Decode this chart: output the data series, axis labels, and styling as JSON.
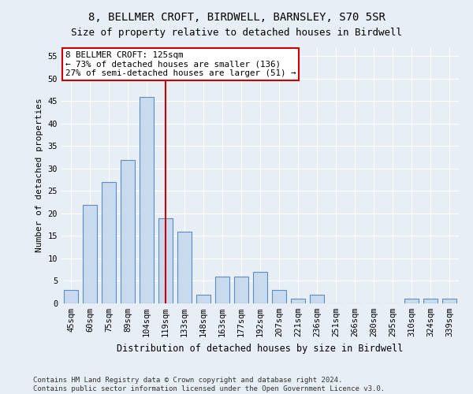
{
  "title": "8, BELLMER CROFT, BIRDWELL, BARNSLEY, S70 5SR",
  "subtitle": "Size of property relative to detached houses in Birdwell",
  "xlabel": "Distribution of detached houses by size in Birdwell",
  "ylabel": "Number of detached properties",
  "categories": [
    "45sqm",
    "60sqm",
    "75sqm",
    "89sqm",
    "104sqm",
    "119sqm",
    "133sqm",
    "148sqm",
    "163sqm",
    "177sqm",
    "192sqm",
    "207sqm",
    "221sqm",
    "236sqm",
    "251sqm",
    "266sqm",
    "280sqm",
    "295sqm",
    "310sqm",
    "324sqm",
    "339sqm"
  ],
  "values": [
    3,
    22,
    27,
    32,
    46,
    19,
    16,
    2,
    6,
    6,
    7,
    3,
    1,
    2,
    0,
    0,
    0,
    0,
    1,
    1,
    1
  ],
  "bar_color": "#c9d9ee",
  "bar_edge_color": "#5b8ec4",
  "annotation_title": "8 BELLMER CROFT: 125sqm",
  "annotation_line1": "← 73% of detached houses are smaller (136)",
  "annotation_line2": "27% of semi-detached houses are larger (51) →",
  "annotation_box_color": "#ffffff",
  "annotation_box_edge": "#cc0000",
  "vline_color": "#cc0000",
  "vline_x": 5.0,
  "ylim": [
    0,
    57
  ],
  "yticks": [
    0,
    5,
    10,
    15,
    20,
    25,
    30,
    35,
    40,
    45,
    50,
    55
  ],
  "footer_line1": "Contains HM Land Registry data © Crown copyright and database right 2024.",
  "footer_line2": "Contains public sector information licensed under the Open Government Licence v3.0.",
  "bg_color": "#e8eef5",
  "plot_bg_color": "#e8eef5",
  "grid_color": "#ffffff",
  "title_fontsize": 10,
  "subtitle_fontsize": 9,
  "tick_fontsize": 7.5,
  "ylabel_fontsize": 8,
  "xlabel_fontsize": 8.5,
  "footer_fontsize": 6.5
}
